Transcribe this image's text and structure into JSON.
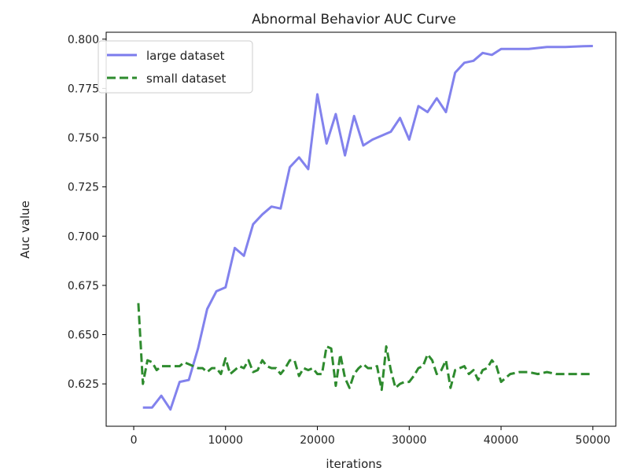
{
  "chart_data": {
    "type": "line",
    "title": "Abnormal Behavior AUC Curve",
    "xlabel": "iterations",
    "ylabel": "Auc value",
    "xlim": [
      -3000,
      52500
    ],
    "ylim": [
      0.6035,
      0.8035
    ],
    "xticks": [
      0,
      10000,
      20000,
      30000,
      40000,
      50000
    ],
    "yticks": [
      0.625,
      0.65,
      0.675,
      0.7,
      0.725,
      0.75,
      0.775,
      0.8
    ],
    "grid": false,
    "legend_position": "top-left",
    "series": [
      {
        "name": "large dataset",
        "color": "#7b7bec",
        "style": "solid",
        "x": [
          1000,
          2000,
          3000,
          4000,
          5000,
          6000,
          7000,
          8000,
          9000,
          10000,
          11000,
          12000,
          13000,
          14000,
          15000,
          16000,
          17000,
          18000,
          19000,
          20000,
          21000,
          22000,
          23000,
          24000,
          25000,
          26000,
          27000,
          28000,
          29000,
          30000,
          31000,
          32000,
          33000,
          34000,
          35000,
          36000,
          37000,
          38000,
          39000,
          40000,
          41000,
          42000,
          43000,
          44000,
          45000,
          46000,
          47000,
          48000,
          49000,
          50000
        ],
        "y": [
          0.613,
          0.613,
          0.619,
          0.612,
          0.626,
          0.627,
          0.643,
          0.663,
          0.672,
          0.674,
          0.694,
          0.69,
          0.706,
          0.711,
          0.715,
          0.714,
          0.735,
          0.74,
          0.734,
          0.772,
          0.747,
          0.762,
          0.741,
          0.761,
          0.746,
          0.749,
          0.751,
          0.753,
          0.76,
          0.749,
          0.766,
          0.763,
          0.77,
          0.763,
          0.783,
          0.788,
          0.789,
          0.793,
          0.792,
          0.795,
          0.795,
          0.795,
          0.795,
          0.7955,
          0.796,
          0.796,
          0.796,
          0.7962,
          0.7964,
          0.7965
        ]
      },
      {
        "name": "small dataset",
        "color": "#2e8b2e",
        "style": "dashed",
        "x": [
          500,
          1000,
          1500,
          2000,
          2500,
          3000,
          3500,
          4000,
          4500,
          5000,
          5500,
          6000,
          6500,
          7000,
          7500,
          8000,
          8500,
          9000,
          9500,
          10000,
          10500,
          11000,
          11500,
          12000,
          12500,
          13000,
          13500,
          14000,
          14500,
          15000,
          15500,
          16000,
          16500,
          17000,
          17500,
          18000,
          18500,
          19000,
          19500,
          20000,
          20500,
          21000,
          21500,
          22000,
          22500,
          23000,
          23500,
          24000,
          24500,
          25000,
          25500,
          26000,
          26500,
          27000,
          27500,
          28000,
          28500,
          29000,
          29500,
          30000,
          30500,
          31000,
          31500,
          32000,
          32500,
          33000,
          33500,
          34000,
          34500,
          35000,
          35500,
          36000,
          36500,
          37000,
          37500,
          38000,
          38500,
          39000,
          39500,
          40000,
          41000,
          42000,
          43000,
          44000,
          45000,
          46000,
          47000,
          48000,
          49000,
          50000
        ],
        "y": [
          0.666,
          0.625,
          0.637,
          0.636,
          0.632,
          0.634,
          0.634,
          0.634,
          0.634,
          0.634,
          0.636,
          0.635,
          0.634,
          0.633,
          0.633,
          0.631,
          0.633,
          0.633,
          0.63,
          0.638,
          0.63,
          0.632,
          0.634,
          0.633,
          0.637,
          0.631,
          0.632,
          0.637,
          0.634,
          0.633,
          0.633,
          0.63,
          0.633,
          0.637,
          0.637,
          0.629,
          0.633,
          0.632,
          0.633,
          0.63,
          0.63,
          0.644,
          0.643,
          0.624,
          0.64,
          0.628,
          0.623,
          0.63,
          0.633,
          0.635,
          0.633,
          0.633,
          0.634,
          0.622,
          0.644,
          0.632,
          0.623,
          0.625,
          0.626,
          0.626,
          0.629,
          0.633,
          0.634,
          0.64,
          0.637,
          0.63,
          0.632,
          0.637,
          0.623,
          0.632,
          0.633,
          0.634,
          0.63,
          0.632,
          0.627,
          0.632,
          0.633,
          0.637,
          0.634,
          0.626,
          0.63,
          0.631,
          0.631,
          0.63,
          0.631,
          0.63,
          0.63,
          0.63,
          0.63,
          0.63
        ]
      }
    ]
  }
}
